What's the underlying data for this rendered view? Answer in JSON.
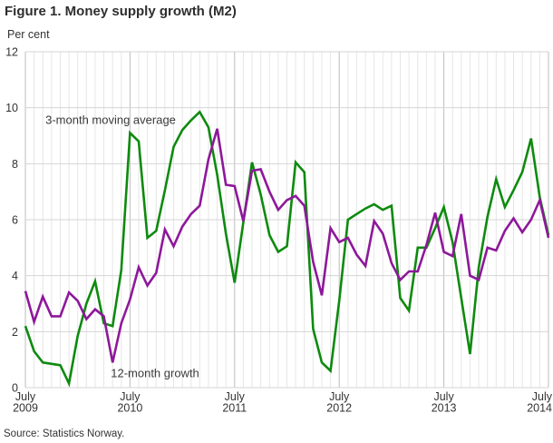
{
  "chart_data": {
    "type": "line",
    "title": "Figure 1. Money supply growth (M2)",
    "unit_label": "Per cent",
    "source": "Source: Statistics Norway.",
    "ylim": [
      0,
      12
    ],
    "yticks": [
      0,
      2,
      4,
      6,
      8,
      10,
      12
    ],
    "x_months_total": 60,
    "x_start": "July 2009",
    "x_end": "July 2014",
    "grid": {
      "monthly_vertical": true,
      "year_verticals_darker": true,
      "horizontal_every": 2
    },
    "legend_position": "inline-annotations",
    "x_ticks": [
      {
        "line1": "July",
        "line2": "2009",
        "month": 0
      },
      {
        "line1": "July",
        "line2": "2010",
        "month": 12
      },
      {
        "line1": "July",
        "line2": "2011",
        "month": 24
      },
      {
        "line1": "July",
        "line2": "2012",
        "month": 36
      },
      {
        "line1": "July",
        "line2": "2013",
        "month": 48
      },
      {
        "line1": "July",
        "line2": "2014",
        "month": 60
      }
    ],
    "series": [
      {
        "name": "3-month moving average",
        "color": "#0e8a0e",
        "values": [
          2.2,
          1.3,
          0.9,
          0.85,
          0.8,
          0.15,
          1.85,
          3.0,
          3.8,
          2.3,
          2.2,
          4.2,
          9.1,
          8.8,
          5.35,
          5.6,
          7.05,
          8.6,
          9.2,
          9.55,
          9.85,
          9.3,
          7.6,
          5.5,
          3.75,
          5.9,
          8.05,
          6.9,
          5.45,
          4.85,
          5.05,
          8.05,
          7.7,
          2.1,
          0.9,
          0.6,
          3.1,
          6.0,
          6.2,
          6.4,
          6.55,
          6.35,
          6.5,
          3.2,
          2.75,
          5.0,
          5.0,
          5.7,
          6.45,
          5.2,
          3.2,
          1.2,
          4.3,
          6.1,
          7.45,
          6.45,
          7.05,
          7.7,
          8.9,
          6.8,
          5.45
        ]
      },
      {
        "name": "12-month growth",
        "color": "#8d189a",
        "values": [
          3.45,
          2.35,
          3.25,
          2.55,
          2.55,
          3.4,
          3.1,
          2.45,
          2.8,
          2.55,
          0.9,
          2.3,
          3.15,
          4.3,
          3.65,
          4.1,
          5.65,
          5.05,
          5.75,
          6.2,
          6.5,
          8.15,
          9.25,
          7.25,
          7.2,
          5.95,
          7.75,
          7.8,
          7.0,
          6.35,
          6.7,
          6.85,
          6.5,
          4.5,
          3.3,
          5.7,
          5.2,
          5.35,
          4.75,
          4.35,
          5.95,
          5.5,
          4.45,
          3.85,
          4.15,
          4.15,
          5.1,
          6.25,
          4.85,
          4.7,
          6.2,
          4.0,
          3.85,
          5.0,
          4.9,
          5.6,
          6.05,
          5.55,
          6.0,
          6.7,
          5.35
        ]
      }
    ],
    "annotations": [
      {
        "text": "3-month moving average",
        "x_month": 2.3,
        "y_value": 9.42
      },
      {
        "text": "12-month growth",
        "x_month": 9.8,
        "y_value": 0.38
      }
    ]
  }
}
